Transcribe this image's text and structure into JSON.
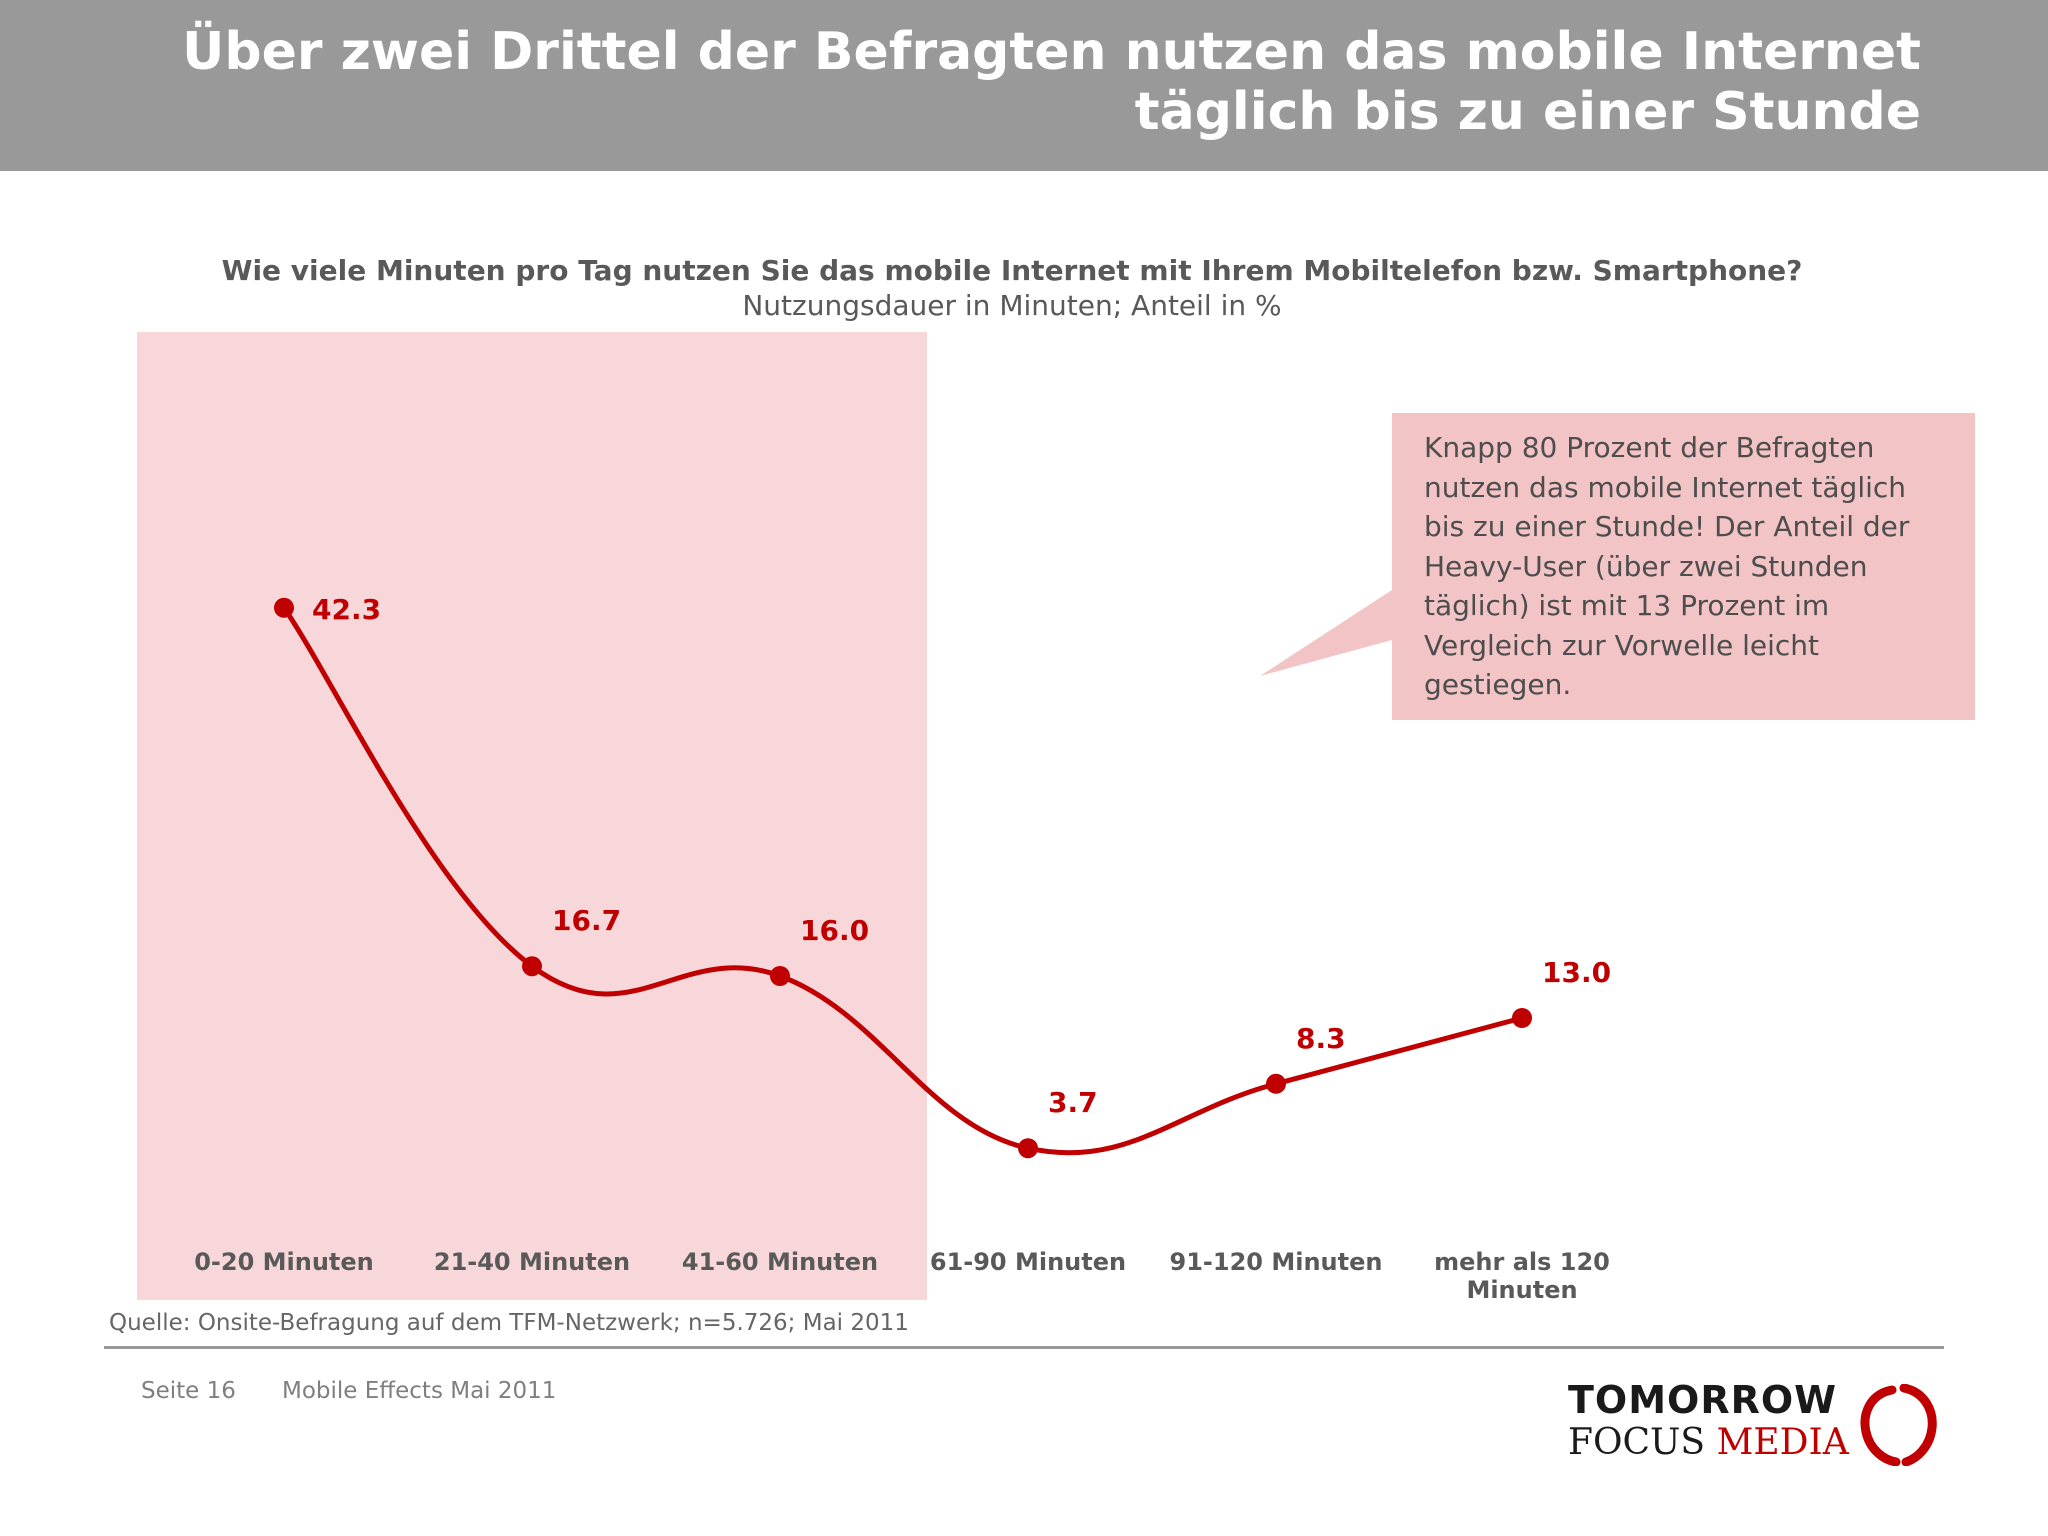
{
  "header": {
    "title_line1": "Über zwei Drittel der Befragten nutzen das mobile Internet",
    "title_line2": "täglich bis zu einer Stunde"
  },
  "chart_data": {
    "type": "line",
    "title": "Wie viele Minuten pro Tag nutzen Sie das mobile Internet mit Ihrem Mobiltelefon bzw. Smartphone?",
    "subtitle": "Nutzungsdauer in Minuten; Anteil in %",
    "categories": [
      "0-20 Minuten",
      "21-40 Minuten",
      "41-60 Minuten",
      "61-90 Minuten",
      "91-120 Minuten",
      "mehr als 120 Minuten"
    ],
    "category_lines": [
      [
        "0-20 Minuten"
      ],
      [
        "21-40 Minuten"
      ],
      [
        "41-60 Minuten"
      ],
      [
        "61-90 Minuten"
      ],
      [
        "91-120 Minuten"
      ],
      [
        "mehr als 120",
        "Minuten"
      ]
    ],
    "values": [
      42.3,
      16.7,
      16.0,
      3.7,
      8.3,
      13.0
    ],
    "value_labels": [
      "42.3",
      "16.7",
      "16.0",
      "3.7",
      "8.3",
      "13.0"
    ],
    "ylim": [
      0,
      50
    ],
    "grid": false,
    "highlight_categories": [
      "0-20 Minuten",
      "21-40 Minuten",
      "41-60 Minuten"
    ],
    "colors": {
      "line": "#c00000",
      "highlight_band": "#f8d7da",
      "callout": "#f2c4c6"
    }
  },
  "callout": {
    "text": "Knapp 80 Prozent der Befragten nutzen das mobile Internet täglich bis zu einer Stunde! Der Anteil der Heavy-User (über zwei Stunden täglich) ist mit 13 Prozent im Vergleich zur Vorwelle leicht gestiegen.",
    "lines": [
      "Knapp 80 Prozent der Befragten",
      "nutzen das mobile Internet täglich",
      "bis zu einer Stunde! Der Anteil der",
      "Heavy-User (über zwei Stunden",
      "täglich) ist mit 13 Prozent im",
      "Vergleich zur Vorwelle leicht",
      "gestiegen."
    ]
  },
  "source": "Quelle: Onsite-Befragung auf dem TFM-Netzwerk; n=5.726; Mai 2011",
  "footer": {
    "page": "Seite 16",
    "document": "Mobile Effects Mai 2011"
  },
  "logo": {
    "line1": "TOMORROW",
    "line2a": "FOCUS",
    "line2b": "MEDIA"
  }
}
